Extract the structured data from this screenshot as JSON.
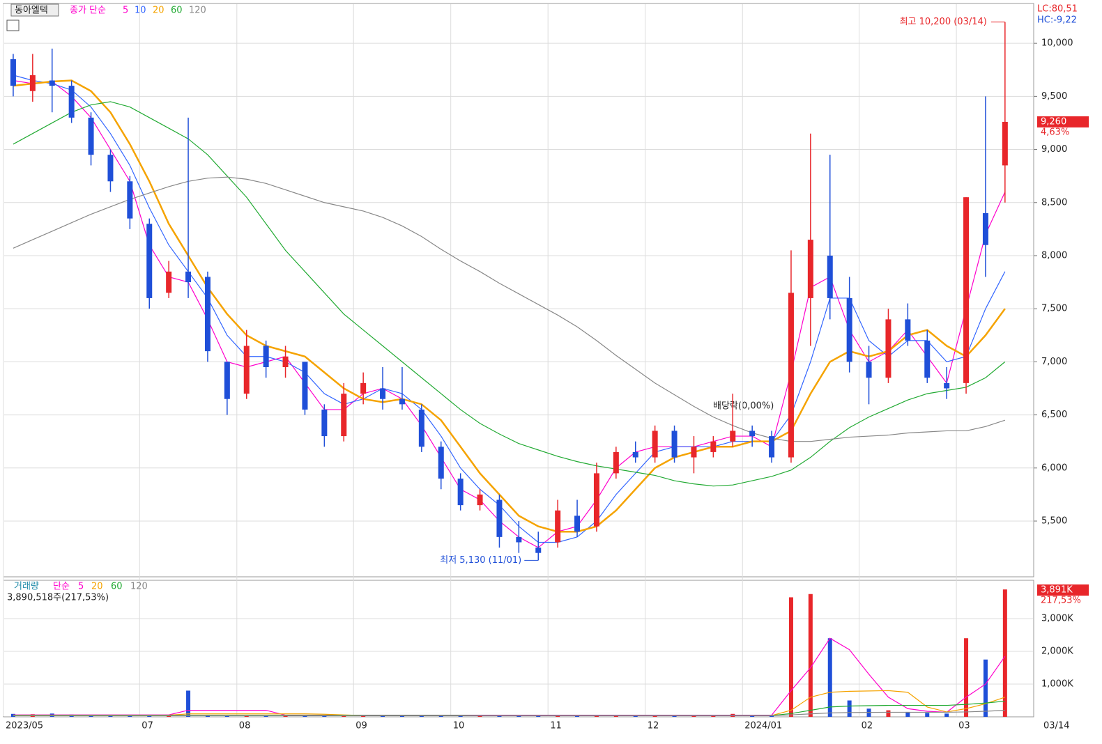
{
  "header": {
    "stock": "동아엘텍",
    "ma_label": "종가 단순",
    "lc": "LC:80,51",
    "hc": "HC:-9,22"
  },
  "chart_data": [
    {
      "type": "candlestick",
      "categories": [
        "2023/05",
        null,
        null,
        null,
        null,
        null,
        null,
        "07",
        null,
        null,
        null,
        null,
        "08",
        null,
        null,
        null,
        null,
        null,
        "09",
        null,
        null,
        null,
        null,
        "10",
        null,
        null,
        null,
        null,
        "11",
        null,
        null,
        null,
        null,
        "12",
        null,
        null,
        null,
        null,
        "2024/01",
        null,
        null,
        null,
        null,
        null,
        "02",
        null,
        null,
        null,
        null,
        "03",
        null,
        null
      ],
      "open": [
        9850,
        9550,
        9650,
        9600,
        9300,
        8950,
        8700,
        8300,
        7650,
        7850,
        7800,
        7000,
        6700,
        7150,
        6950,
        7000,
        6550,
        6300,
        6700,
        6750,
        6650,
        6550,
        6200,
        5900,
        5650,
        5700,
        5350,
        5250,
        5300,
        5550,
        5450,
        5950,
        6150,
        6100,
        6350,
        6100,
        6150,
        6250,
        6350,
        6300,
        6100,
        7600,
        8000,
        7600,
        7000,
        6850,
        7400,
        7200,
        6800,
        6800,
        8400,
        8850
      ],
      "high": [
        9900,
        9900,
        9950,
        9650,
        9350,
        9000,
        8750,
        8350,
        7950,
        9300,
        7850,
        7000,
        7300,
        7200,
        7150,
        7000,
        6600,
        6800,
        6900,
        6950,
        6950,
        6600,
        6250,
        5950,
        5800,
        5750,
        5500,
        5400,
        5700,
        5700,
        6050,
        6200,
        6250,
        6400,
        6400,
        6300,
        6300,
        6700,
        6400,
        6350,
        8050,
        9150,
        8950,
        7800,
        7150,
        7500,
        7550,
        7300,
        6950,
        8550,
        9500,
        10200
      ],
      "low": [
        9500,
        9450,
        9350,
        9250,
        8850,
        8600,
        8250,
        7500,
        7600,
        7600,
        7000,
        6500,
        6650,
        6850,
        6850,
        6500,
        6200,
        6250,
        6600,
        6550,
        6550,
        6150,
        5800,
        5600,
        5600,
        5250,
        5200,
        5130,
        5250,
        5350,
        5400,
        5900,
        6050,
        6050,
        6050,
        5950,
        6100,
        6200,
        6200,
        6050,
        6050,
        7150,
        7400,
        6900,
        6600,
        6800,
        7150,
        6800,
        6650,
        6700,
        7800,
        8500
      ],
      "close": [
        9600,
        9700,
        9600,
        9300,
        8950,
        8700,
        8350,
        7600,
        7850,
        7750,
        7100,
        6650,
        7150,
        6950,
        7050,
        6550,
        6300,
        6700,
        6800,
        6650,
        6600,
        6200,
        5900,
        5650,
        5750,
        5350,
        5300,
        5200,
        5600,
        5400,
        5950,
        6150,
        6100,
        6350,
        6100,
        6200,
        6250,
        6350,
        6300,
        6100,
        7650,
        8150,
        7600,
        7000,
        6850,
        7400,
        7200,
        6850,
        6750,
        8550,
        8100,
        9260
      ],
      "up_color": "#e8262a",
      "down_color": "#1f4fd8",
      "series": [
        {
          "name": "5",
          "color": "#ff00cc",
          "values": [
            9650,
            9620,
            9640,
            9500,
            9300,
            9000,
            8700,
            8100,
            7800,
            7750,
            7400,
            7000,
            6950,
            7000,
            7050,
            6800,
            6550,
            6550,
            6700,
            6750,
            6650,
            6400,
            6100,
            5800,
            5700,
            5500,
            5350,
            5250,
            5400,
            5450,
            5700,
            6000,
            6150,
            6200,
            6200,
            6200,
            6250,
            6300,
            6300,
            6200,
            6900,
            7700,
            7800,
            7300,
            7000,
            7100,
            7300,
            7050,
            6800,
            7500,
            8200,
            8600
          ]
        },
        {
          "name": "10",
          "color": "#3366ff",
          "values": [
            9700,
            9650,
            9620,
            9560,
            9400,
            9150,
            8850,
            8450,
            8100,
            7850,
            7600,
            7250,
            7050,
            7050,
            7000,
            6900,
            6700,
            6600,
            6650,
            6750,
            6700,
            6550,
            6300,
            6000,
            5800,
            5650,
            5450,
            5300,
            5300,
            5350,
            5500,
            5750,
            5950,
            6150,
            6200,
            6200,
            6200,
            6250,
            6250,
            6250,
            6500,
            7000,
            7600,
            7600,
            7200,
            7050,
            7200,
            7200,
            7000,
            7050,
            7500,
            7850
          ]
        },
        {
          "name": "20",
          "color": "#f5a300",
          "values": [
            9600,
            9620,
            9640,
            9650,
            9550,
            9350,
            9050,
            8700,
            8300,
            8000,
            7700,
            7450,
            7250,
            7150,
            7100,
            7050,
            6900,
            6750,
            6650,
            6620,
            6650,
            6600,
            6450,
            6200,
            5950,
            5750,
            5550,
            5450,
            5400,
            5400,
            5450,
            5600,
            5800,
            6000,
            6100,
            6150,
            6200,
            6200,
            6250,
            6250,
            6350,
            6700,
            7000,
            7100,
            7050,
            7100,
            7250,
            7300,
            7150,
            7050,
            7250,
            7500
          ]
        },
        {
          "name": "60",
          "color": "#22aa33",
          "values": [
            9050,
            9150,
            9250,
            9350,
            9420,
            9450,
            9400,
            9300,
            9200,
            9100,
            8950,
            8750,
            8550,
            8300,
            8050,
            7850,
            7650,
            7450,
            7300,
            7150,
            7000,
            6850,
            6700,
            6550,
            6420,
            6320,
            6230,
            6170,
            6110,
            6060,
            6020,
            5990,
            5960,
            5930,
            5880,
            5850,
            5830,
            5840,
            5880,
            5920,
            5980,
            6100,
            6250,
            6380,
            6480,
            6560,
            6640,
            6700,
            6730,
            6760,
            6850,
            7000
          ]
        },
        {
          "name": "120",
          "color": "#888888",
          "values": [
            8070,
            8150,
            8230,
            8310,
            8390,
            8460,
            8530,
            8590,
            8650,
            8700,
            8730,
            8740,
            8720,
            8680,
            8620,
            8560,
            8500,
            8460,
            8420,
            8360,
            8280,
            8180,
            8060,
            7950,
            7850,
            7740,
            7640,
            7540,
            7440,
            7330,
            7200,
            7060,
            6930,
            6800,
            6690,
            6580,
            6480,
            6400,
            6330,
            6280,
            6250,
            6250,
            6270,
            6290,
            6300,
            6310,
            6330,
            6340,
            6350,
            6350,
            6390,
            6450
          ]
        }
      ],
      "ylim": [
        4975,
        10375
      ],
      "yticks": [
        {
          "value": 5500,
          "label": "5,500"
        },
        {
          "value": 6000,
          "label": "6,000"
        },
        {
          "value": 6500,
          "label": "6,500"
        },
        {
          "value": 7000,
          "label": "7,000"
        },
        {
          "value": 7500,
          "label": "7,500"
        },
        {
          "value": 8000,
          "label": "8,000"
        },
        {
          "value": 8500,
          "label": "8,500"
        },
        {
          "value": 9000,
          "label": "9,000"
        },
        {
          "value": 9500,
          "label": "9,500"
        },
        {
          "value": 10000,
          "label": "10,000"
        }
      ],
      "grid": true,
      "high_label": "최고 10,200 (03/14)",
      "low_label": "최저 5,130 (11/01)",
      "dividend_label": "배당락(0,00%)",
      "last_price_label": "9,260",
      "last_change_label": "4,63%",
      "last_date_label": "03/14"
    },
    {
      "type": "bar",
      "title": "거래량",
      "ma_label": "단순",
      "info": "3,890,518주(217,53%)",
      "values": [
        90,
        80,
        100,
        70,
        60,
        60,
        50,
        50,
        40,
        800,
        60,
        50,
        40,
        40,
        30,
        30,
        30,
        30,
        30,
        30,
        30,
        30,
        30,
        30,
        30,
        30,
        30,
        40,
        30,
        30,
        30,
        30,
        30,
        30,
        30,
        30,
        30,
        90,
        30,
        30,
        3650,
        3750,
        2400,
        500,
        250,
        200,
        150,
        120,
        100,
        2400,
        1750,
        3890
      ],
      "series": [
        {
          "name": "5",
          "color": "#ff00cc",
          "values": [
            60,
            60,
            60,
            60,
            60,
            60,
            60,
            60,
            60,
            200,
            200,
            200,
            200,
            200,
            50,
            50,
            50,
            50,
            50,
            50,
            50,
            50,
            50,
            50,
            50,
            50,
            50,
            50,
            50,
            50,
            50,
            50,
            50,
            50,
            50,
            50,
            50,
            50,
            50,
            50,
            800,
            1500,
            2400,
            2050,
            1300,
            600,
            250,
            170,
            140,
            600,
            1000,
            1850
          ]
        },
        {
          "name": "20",
          "color": "#f5a300",
          "values": [
            50,
            50,
            50,
            50,
            50,
            50,
            50,
            50,
            50,
            90,
            90,
            90,
            90,
            90,
            90,
            90,
            80,
            60,
            40,
            40,
            40,
            40,
            40,
            40,
            40,
            40,
            40,
            40,
            40,
            40,
            40,
            40,
            40,
            40,
            40,
            40,
            40,
            40,
            40,
            40,
            200,
            600,
            750,
            780,
            790,
            800,
            750,
            300,
            150,
            250,
            400,
            600
          ]
        },
        {
          "name": "60",
          "color": "#22aa33",
          "values": [
            45,
            45,
            45,
            45,
            45,
            45,
            45,
            45,
            45,
            45,
            45,
            45,
            45,
            45,
            45,
            45,
            45,
            45,
            45,
            45,
            45,
            45,
            45,
            45,
            40,
            40,
            40,
            40,
            40,
            40,
            40,
            40,
            40,
            40,
            40,
            40,
            40,
            40,
            40,
            40,
            100,
            200,
            300,
            330,
            340,
            350,
            350,
            350,
            350,
            380,
            420,
            480
          ]
        },
        {
          "name": "120",
          "color": "#888888",
          "values": [
            35,
            35,
            35,
            35,
            35,
            35,
            35,
            35,
            35,
            35,
            35,
            35,
            35,
            35,
            35,
            35,
            35,
            35,
            35,
            35,
            35,
            35,
            35,
            35,
            35,
            35,
            35,
            35,
            35,
            35,
            35,
            35,
            35,
            35,
            35,
            35,
            35,
            35,
            35,
            35,
            60,
            90,
            120,
            130,
            135,
            140,
            140,
            140,
            140,
            150,
            170,
            200
          ]
        }
      ],
      "ylim": [
        0,
        4170
      ],
      "yticks": [
        {
          "value": 1000,
          "label": "1,000K"
        },
        {
          "value": 2000,
          "label": "2,000K"
        },
        {
          "value": 3000,
          "label": "3,000K"
        }
      ],
      "last_value_label": "3,891K",
      "last_change_label": "217,53%"
    }
  ]
}
